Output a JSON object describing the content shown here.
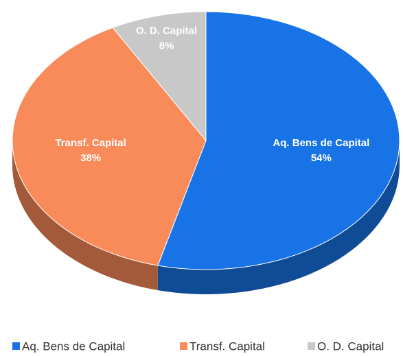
{
  "chart_data": {
    "type": "pie",
    "categories": [
      "Aq. Bens de Capital",
      "Transf. Capital",
      "O. D. Capital"
    ],
    "values": [
      54,
      38,
      8
    ],
    "value_labels": [
      "54%",
      "38%",
      "8%"
    ],
    "colors": [
      "#1874e6",
      "#f98a59",
      "#c8c8c8"
    ],
    "legend": "bottom"
  }
}
